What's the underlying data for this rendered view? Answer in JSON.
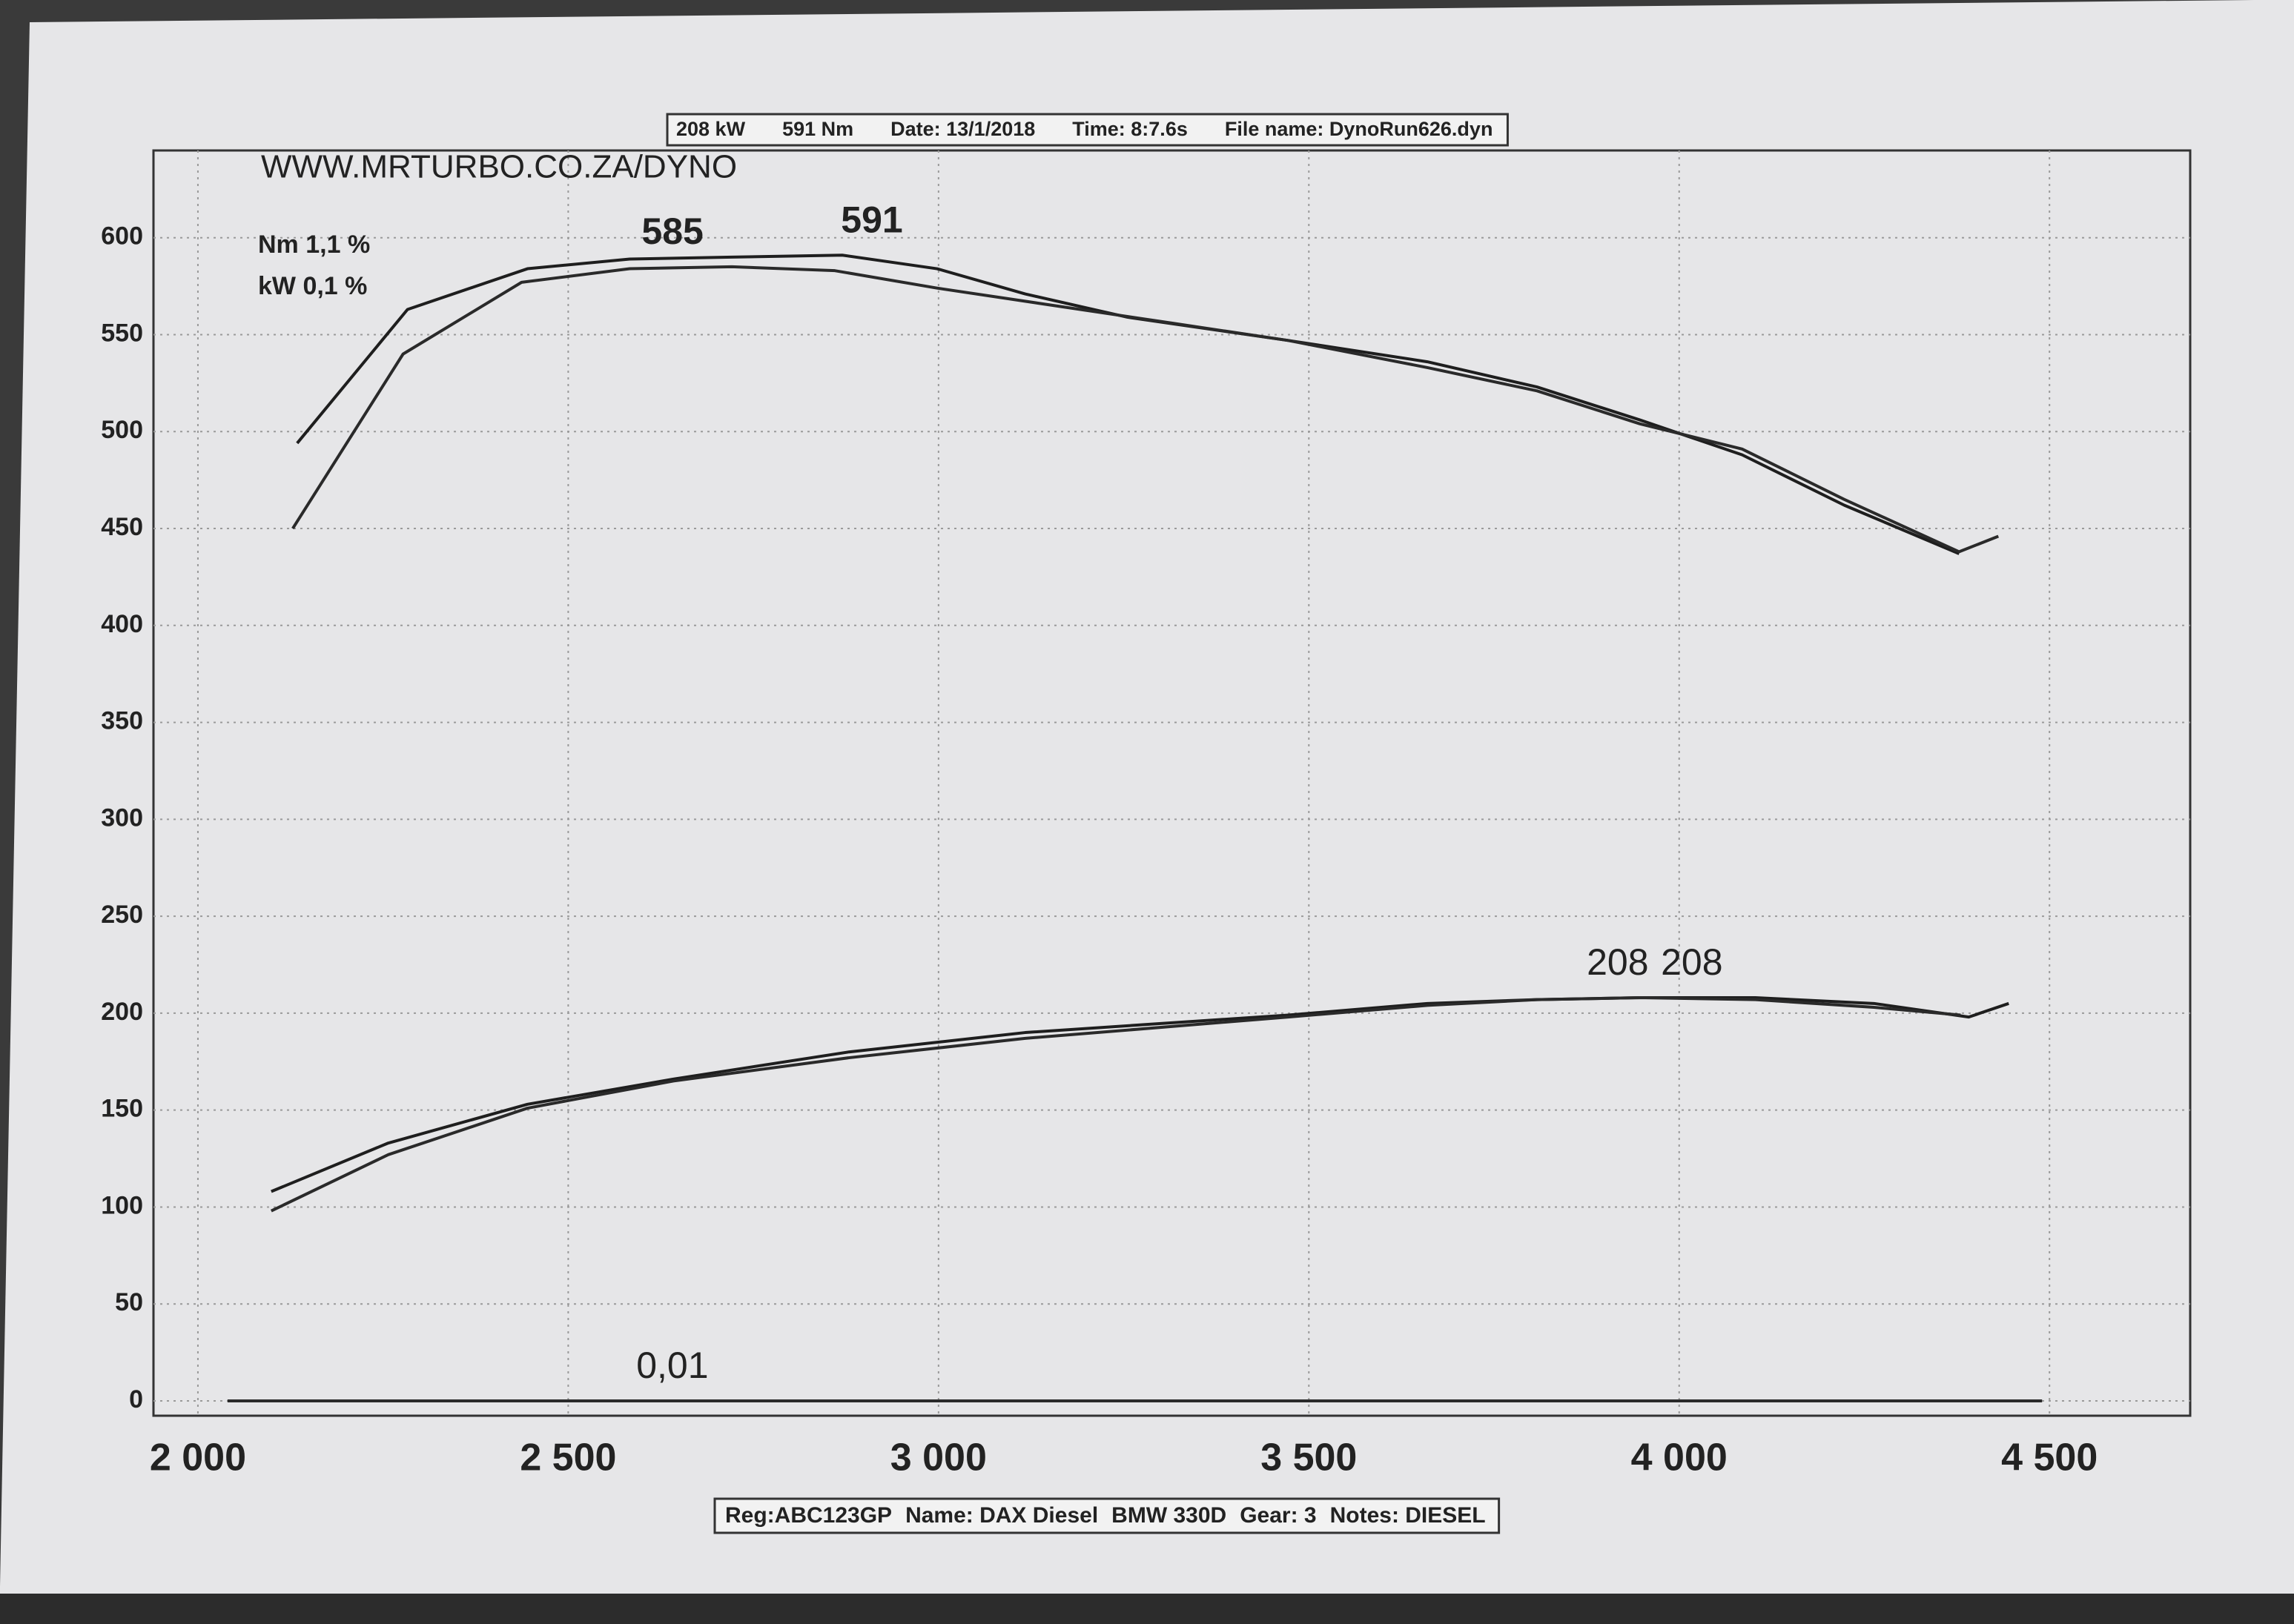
{
  "chart_data": {
    "type": "line",
    "header": [
      "208 kW",
      "591 Nm",
      "Date: 13/1/2018",
      "Time: 8:7.6s",
      "File name: DynoRun626.dyn"
    ],
    "watermark": "WWW.MRTURBO.CO.ZA/DYNO",
    "notes": [
      "Nm 1,1 %",
      "kW 0,1 %"
    ],
    "footer": [
      "Reg:ABC123GP",
      "Name: DAX Diesel",
      "BMW 330D",
      "Gear: 3",
      "Notes: DIESEL"
    ],
    "xlim": [
      1940,
      4690
    ],
    "ylim": [
      0,
      645
    ],
    "xticks": [
      {
        "value": 2000,
        "label": "2 000"
      },
      {
        "value": 2500,
        "label": "2 500"
      },
      {
        "value": 3000,
        "label": "3 000"
      },
      {
        "value": 3500,
        "label": "3 500"
      },
      {
        "value": 4000,
        "label": "4 000"
      },
      {
        "value": 4500,
        "label": "4 500"
      }
    ],
    "yticks": [
      0,
      50,
      100,
      150,
      200,
      250,
      300,
      350,
      400,
      450,
      500,
      550,
      600
    ],
    "grid": true,
    "series": [
      {
        "color": "#1e1e1e",
        "peak_label": "591",
        "x": [
          2134,
          2283,
          2445,
          2583,
          2721,
          2870,
          2998,
          3117,
          3255,
          3472,
          3660,
          3808,
          3947,
          4085,
          4223,
          4378
        ],
        "values": [
          494,
          563,
          584,
          589,
          590,
          591,
          584,
          571,
          559,
          547,
          536,
          523,
          506,
          488,
          462,
          437
        ]
      },
      {
        "color": "#2a2a2a",
        "peak_label": "585",
        "x": [
          2128,
          2277,
          2437,
          2583,
          2721,
          2860,
          2998,
          3156,
          3314,
          3472,
          3660,
          3808,
          3947,
          4085,
          4223,
          4378,
          4431
        ],
        "values": [
          450,
          540,
          577,
          584,
          585,
          583,
          574,
          565,
          556,
          547,
          533,
          521,
          504,
          491,
          465,
          438,
          446
        ]
      },
      {
        "color": "#1e1e1e",
        "peak_label": "208",
        "x": [
          2099,
          2257,
          2445,
          2642,
          2879,
          3117,
          3472,
          3660,
          3808,
          3947,
          4103,
          4263,
          4391,
          4445
        ],
        "values": [
          108,
          133,
          153,
          166,
          180,
          190,
          199,
          205,
          207,
          208,
          208,
          205,
          198,
          205
        ]
      },
      {
        "color": "#2a2a2a",
        "peak_label": "208",
        "x": [
          2099,
          2257,
          2445,
          2642,
          2879,
          3117,
          3472,
          3660,
          3808,
          3947,
          4103,
          4263,
          4380
        ],
        "values": [
          98,
          127,
          151,
          165,
          177,
          187,
          198,
          204,
          207,
          208,
          207,
          203,
          199
        ]
      },
      {
        "color": "#2a2a2a",
        "peak_label": "0,01",
        "x": [
          2040,
          4490
        ],
        "values": [
          0.01,
          0.01
        ]
      }
    ]
  }
}
